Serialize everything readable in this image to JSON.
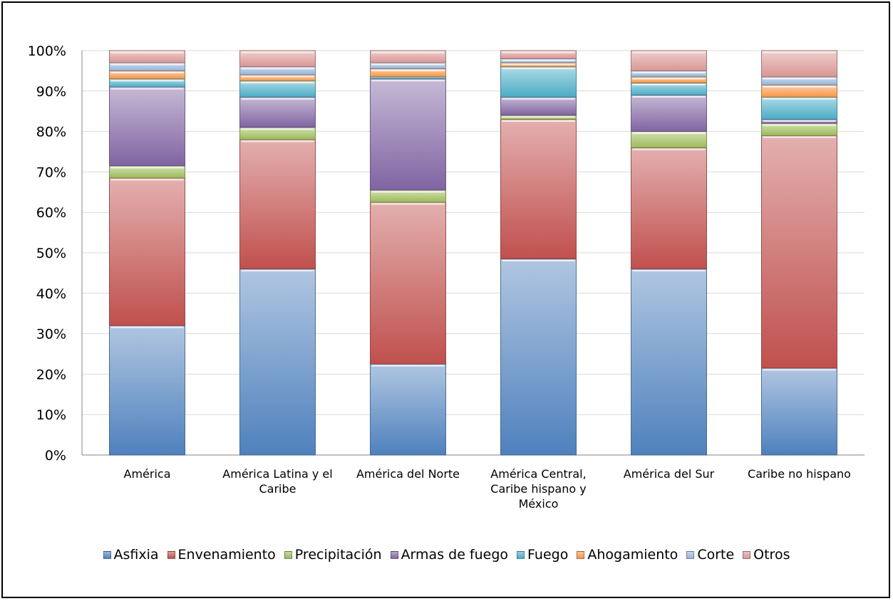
{
  "chart_data": {
    "type": "bar",
    "stacked": true,
    "title": "",
    "xlabel": "",
    "ylabel": "",
    "ylim": [
      0,
      100
    ],
    "y_ticks": [
      "0%",
      "10%",
      "20%",
      "30%",
      "40%",
      "50%",
      "60%",
      "70%",
      "80%",
      "90%",
      "100%"
    ],
    "grid": true,
    "legend_position": "bottom",
    "categories": [
      [
        "América"
      ],
      [
        "América Latina y el",
        "Caribe"
      ],
      [
        "América del Norte"
      ],
      [
        "América Central,",
        "Caribe hispano y",
        "México"
      ],
      [
        "América del Sur"
      ],
      [
        "Caribe no hispano"
      ]
    ],
    "series": [
      {
        "name": "Asfixia",
        "color": "#4f81bd",
        "values": [
          32,
          46,
          22.5,
          48.5,
          46,
          21.5
        ]
      },
      {
        "name": "Envenamiento",
        "color": "#c0504d",
        "values": [
          36.5,
          32,
          40,
          34.5,
          30,
          57.5
        ]
      },
      {
        "name": "Precipitación",
        "color": "#9bbb59",
        "values": [
          3,
          3,
          3,
          1,
          4,
          3
        ]
      },
      {
        "name": "Armas de fuego",
        "color": "#8064a2",
        "values": [
          19.5,
          7.5,
          27.5,
          4.5,
          9,
          1
        ]
      },
      {
        "name": "Fuego",
        "color": "#4bacc6",
        "values": [
          2,
          4,
          0.5,
          7.5,
          3,
          5.5
        ]
      },
      {
        "name": "Ahogamiento",
        "color": "#f79646",
        "values": [
          2,
          1.5,
          2,
          1,
          1.5,
          3
        ]
      },
      {
        "name": "Corte",
        "color": "#95b3d7",
        "values": [
          2,
          2,
          1.5,
          1,
          1.5,
          2
        ]
      },
      {
        "name": "Otros",
        "color": "#d99694",
        "values": [
          3,
          4,
          3,
          2,
          5,
          6.5
        ]
      }
    ]
  }
}
